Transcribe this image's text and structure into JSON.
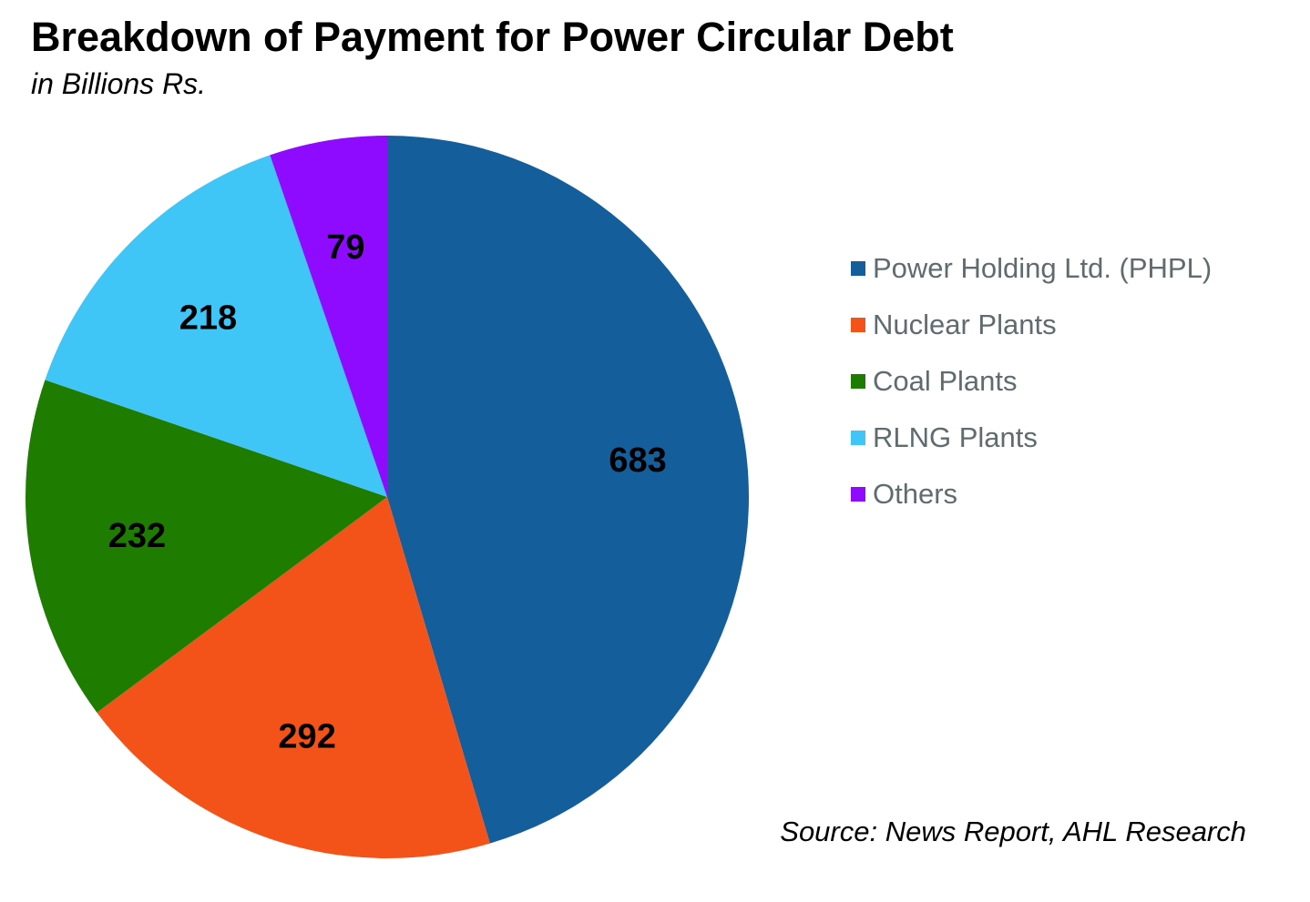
{
  "title": "Breakdown of Payment for Power Circular Debt",
  "subtitle": "in Billions Rs.",
  "source": "Source: News Report, AHL Research",
  "chart_data": {
    "type": "pie",
    "title": "Breakdown of Payment for Power Circular Debt",
    "subtitle": "in Billions Rs.",
    "start_angle": "12 o'clock",
    "direction": "clockwise",
    "legend_position": "right",
    "slices": [
      {
        "name": "Power Holding Ltd. (PHPL)",
        "value": 683,
        "label": "683",
        "color": "#155e9c"
      },
      {
        "name": "Nuclear Plants",
        "value": 292,
        "label": "292",
        "color": "#f35318"
      },
      {
        "name": "Coal Plants",
        "value": 232,
        "label": "232",
        "color": "#1e7d00"
      },
      {
        "name": "RLNG Plants",
        "value": 218,
        "label": "218",
        "color": "#3fc6f7"
      },
      {
        "name": "Others",
        "value": 79,
        "label": "79",
        "color": "#8e0bff"
      }
    ]
  }
}
